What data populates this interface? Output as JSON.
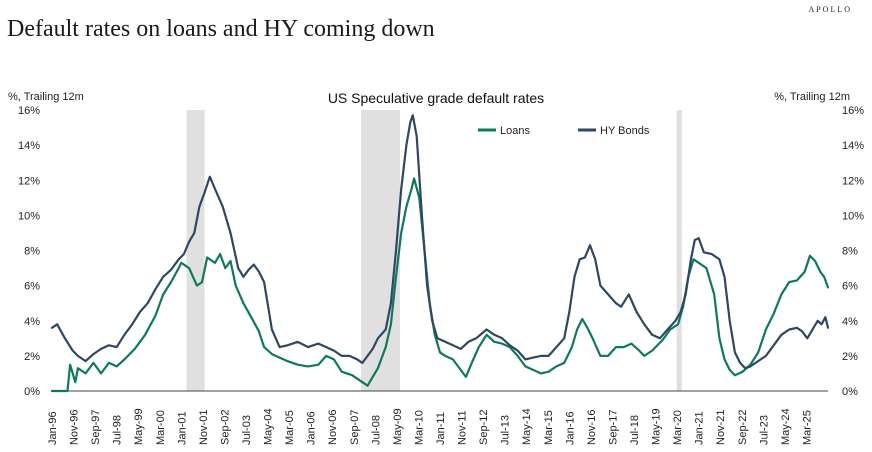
{
  "brand": "APOLLO",
  "headline": "Default rates on loans and HY coming down",
  "chart_data": {
    "type": "line",
    "title": "US Speculative grade default rates",
    "ylabel_left": "%, Trailing 12m",
    "ylabel_right": "%, Trailing 12m",
    "ylim": [
      0,
      16
    ],
    "yticks": [
      0,
      2,
      4,
      6,
      8,
      10,
      12,
      14,
      16
    ],
    "ytick_labels": [
      "0%",
      "2%",
      "4%",
      "6%",
      "8%",
      "10%",
      "12%",
      "14%",
      "16%"
    ],
    "x_start": "1996-01",
    "x_end": "2025-12",
    "xtick_labels": [
      "Jan-96",
      "Nov-96",
      "Sep-97",
      "Jul-98",
      "May-99",
      "Mar-00",
      "Jan-01",
      "Nov-01",
      "Sep-02",
      "Jul-03",
      "May-04",
      "Mar-05",
      "Jan-06",
      "Nov-06",
      "Sep-07",
      "Jul-08",
      "May-09",
      "Mar-10",
      "Jan-11",
      "Nov-11",
      "Sep-12",
      "Jul-13",
      "May-14",
      "Mar-15",
      "Jan-16",
      "Nov-16",
      "Sep-17",
      "Jul-18",
      "May-19",
      "Mar-20",
      "Jan-21",
      "Nov-21",
      "Sep-22",
      "Jul-23",
      "May-24",
      "Mar-25"
    ],
    "recessions": [
      {
        "start": 2001.2,
        "end": 2001.9
      },
      {
        "start": 2007.95,
        "end": 2009.45
      },
      {
        "start": 2020.15,
        "end": 2020.35
      }
    ],
    "legend": [
      "Loans",
      "HY Bonds"
    ],
    "colors": {
      "loans": "#0e7a5a",
      "hy": "#2f4763",
      "recession": "#e0e0e0",
      "axis": "#444444"
    },
    "series": [
      {
        "name": "Loans",
        "points": [
          [
            1996.0,
            0
          ],
          [
            1996.6,
            0
          ],
          [
            1996.7,
            1.5
          ],
          [
            1996.9,
            0.5
          ],
          [
            1997.0,
            1.3
          ],
          [
            1997.3,
            1.0
          ],
          [
            1997.6,
            1.6
          ],
          [
            1997.9,
            1.0
          ],
          [
            1998.2,
            1.6
          ],
          [
            1998.5,
            1.4
          ],
          [
            1998.8,
            1.8
          ],
          [
            1999.2,
            2.4
          ],
          [
            1999.6,
            3.2
          ],
          [
            2000.0,
            4.3
          ],
          [
            2000.3,
            5.5
          ],
          [
            2000.6,
            6.2
          ],
          [
            2000.9,
            7.0
          ],
          [
            2001.0,
            7.3
          ],
          [
            2001.3,
            7.0
          ],
          [
            2001.6,
            6.0
          ],
          [
            2001.8,
            6.2
          ],
          [
            2002.0,
            7.6
          ],
          [
            2002.3,
            7.3
          ],
          [
            2002.5,
            7.8
          ],
          [
            2002.7,
            7.0
          ],
          [
            2002.9,
            7.4
          ],
          [
            2003.1,
            6.0
          ],
          [
            2003.4,
            5.0
          ],
          [
            2003.7,
            4.2
          ],
          [
            2004.0,
            3.4
          ],
          [
            2004.2,
            2.5
          ],
          [
            2004.5,
            2.1
          ],
          [
            2004.8,
            1.9
          ],
          [
            2005.1,
            1.7
          ],
          [
            2005.5,
            1.5
          ],
          [
            2005.9,
            1.4
          ],
          [
            2006.3,
            1.5
          ],
          [
            2006.6,
            2.0
          ],
          [
            2006.9,
            1.8
          ],
          [
            2007.2,
            1.1
          ],
          [
            2007.6,
            0.9
          ],
          [
            2008.0,
            0.5
          ],
          [
            2008.2,
            0.3
          ],
          [
            2008.4,
            0.8
          ],
          [
            2008.6,
            1.3
          ],
          [
            2008.9,
            2.5
          ],
          [
            2009.1,
            3.8
          ],
          [
            2009.3,
            6.5
          ],
          [
            2009.5,
            9.0
          ],
          [
            2009.7,
            10.5
          ],
          [
            2009.9,
            11.5
          ],
          [
            2010.0,
            12.1
          ],
          [
            2010.2,
            11.0
          ],
          [
            2010.4,
            8.0
          ],
          [
            2010.6,
            5.0
          ],
          [
            2010.8,
            3.2
          ],
          [
            2011.0,
            2.2
          ],
          [
            2011.2,
            2.0
          ],
          [
            2011.5,
            1.8
          ],
          [
            2011.8,
            1.2
          ],
          [
            2012.0,
            0.8
          ],
          [
            2012.2,
            1.5
          ],
          [
            2012.5,
            2.5
          ],
          [
            2012.8,
            3.2
          ],
          [
            2013.1,
            2.8
          ],
          [
            2013.4,
            2.7
          ],
          [
            2013.7,
            2.5
          ],
          [
            2014.0,
            2.0
          ],
          [
            2014.3,
            1.4
          ],
          [
            2014.6,
            1.2
          ],
          [
            2014.9,
            1.0
          ],
          [
            2015.2,
            1.1
          ],
          [
            2015.5,
            1.4
          ],
          [
            2015.8,
            1.6
          ],
          [
            2016.1,
            2.5
          ],
          [
            2016.3,
            3.5
          ],
          [
            2016.5,
            4.1
          ],
          [
            2016.7,
            3.6
          ],
          [
            2016.9,
            3.0
          ],
          [
            2017.2,
            2.0
          ],
          [
            2017.5,
            2.0
          ],
          [
            2017.8,
            2.5
          ],
          [
            2018.1,
            2.5
          ],
          [
            2018.4,
            2.7
          ],
          [
            2018.7,
            2.3
          ],
          [
            2018.9,
            2.0
          ],
          [
            2019.2,
            2.3
          ],
          [
            2019.6,
            2.9
          ],
          [
            2019.9,
            3.5
          ],
          [
            2020.2,
            3.8
          ],
          [
            2020.4,
            4.8
          ],
          [
            2020.6,
            6.5
          ],
          [
            2020.8,
            7.5
          ],
          [
            2021.0,
            7.3
          ],
          [
            2021.3,
            7.0
          ],
          [
            2021.6,
            5.5
          ],
          [
            2021.8,
            3.0
          ],
          [
            2022.0,
            1.8
          ],
          [
            2022.2,
            1.2
          ],
          [
            2022.4,
            0.9
          ],
          [
            2022.7,
            1.1
          ],
          [
            2023.0,
            1.5
          ],
          [
            2023.3,
            2.2
          ],
          [
            2023.6,
            3.5
          ],
          [
            2023.9,
            4.4
          ],
          [
            2024.2,
            5.5
          ],
          [
            2024.5,
            6.2
          ],
          [
            2024.8,
            6.3
          ],
          [
            2025.1,
            6.8
          ],
          [
            2025.3,
            7.7
          ],
          [
            2025.5,
            7.4
          ],
          [
            2025.7,
            6.8
          ],
          [
            2025.85,
            6.5
          ],
          [
            2026.0,
            5.9
          ]
        ]
      },
      {
        "name": "HY Bonds",
        "points": [
          [
            1996.0,
            3.6
          ],
          [
            1996.2,
            3.8
          ],
          [
            1996.5,
            3.0
          ],
          [
            1996.8,
            2.3
          ],
          [
            1997.0,
            2.0
          ],
          [
            1997.3,
            1.7
          ],
          [
            1997.6,
            2.1
          ],
          [
            1997.9,
            2.4
          ],
          [
            1998.2,
            2.6
          ],
          [
            1998.5,
            2.5
          ],
          [
            1998.8,
            3.2
          ],
          [
            1999.1,
            3.8
          ],
          [
            1999.4,
            4.5
          ],
          [
            1999.7,
            5.0
          ],
          [
            2000.0,
            5.8
          ],
          [
            2000.3,
            6.5
          ],
          [
            2000.6,
            6.9
          ],
          [
            2000.9,
            7.5
          ],
          [
            2001.1,
            7.8
          ],
          [
            2001.3,
            8.5
          ],
          [
            2001.5,
            9.0
          ],
          [
            2001.7,
            10.5
          ],
          [
            2001.9,
            11.3
          ],
          [
            2002.1,
            12.2
          ],
          [
            2002.3,
            11.5
          ],
          [
            2002.6,
            10.5
          ],
          [
            2002.9,
            9.0
          ],
          [
            2003.2,
            7.0
          ],
          [
            2003.4,
            6.5
          ],
          [
            2003.6,
            6.9
          ],
          [
            2003.8,
            7.2
          ],
          [
            2004.0,
            6.8
          ],
          [
            2004.2,
            6.2
          ],
          [
            2004.5,
            3.5
          ],
          [
            2004.8,
            2.5
          ],
          [
            2005.1,
            2.6
          ],
          [
            2005.5,
            2.8
          ],
          [
            2005.9,
            2.5
          ],
          [
            2006.3,
            2.7
          ],
          [
            2006.6,
            2.5
          ],
          [
            2006.9,
            2.3
          ],
          [
            2007.2,
            2.0
          ],
          [
            2007.5,
            2.0
          ],
          [
            2007.8,
            1.8
          ],
          [
            2008.0,
            1.6
          ],
          [
            2008.2,
            2.0
          ],
          [
            2008.4,
            2.4
          ],
          [
            2008.6,
            3.0
          ],
          [
            2008.9,
            3.5
          ],
          [
            2009.1,
            5.0
          ],
          [
            2009.3,
            8.0
          ],
          [
            2009.5,
            11.5
          ],
          [
            2009.7,
            14.0
          ],
          [
            2009.85,
            15.3
          ],
          [
            2009.95,
            15.7
          ],
          [
            2010.1,
            14.5
          ],
          [
            2010.3,
            10.0
          ],
          [
            2010.5,
            6.0
          ],
          [
            2010.7,
            4.0
          ],
          [
            2010.9,
            3.0
          ],
          [
            2011.2,
            2.8
          ],
          [
            2011.5,
            2.6
          ],
          [
            2011.8,
            2.4
          ],
          [
            2012.1,
            2.8
          ],
          [
            2012.4,
            3.0
          ],
          [
            2012.8,
            3.5
          ],
          [
            2013.1,
            3.2
          ],
          [
            2013.4,
            3.0
          ],
          [
            2013.7,
            2.6
          ],
          [
            2014.0,
            2.3
          ],
          [
            2014.3,
            1.8
          ],
          [
            2014.6,
            1.9
          ],
          [
            2014.9,
            2.0
          ],
          [
            2015.2,
            2.0
          ],
          [
            2015.5,
            2.5
          ],
          [
            2015.8,
            3.0
          ],
          [
            2016.0,
            4.5
          ],
          [
            2016.2,
            6.5
          ],
          [
            2016.4,
            7.5
          ],
          [
            2016.6,
            7.6
          ],
          [
            2016.8,
            8.3
          ],
          [
            2017.0,
            7.5
          ],
          [
            2017.2,
            6.0
          ],
          [
            2017.5,
            5.5
          ],
          [
            2017.8,
            5.0
          ],
          [
            2018.0,
            4.8
          ],
          [
            2018.3,
            5.5
          ],
          [
            2018.6,
            4.5
          ],
          [
            2018.9,
            3.8
          ],
          [
            2019.2,
            3.2
          ],
          [
            2019.5,
            3.0
          ],
          [
            2019.8,
            3.5
          ],
          [
            2020.1,
            4.0
          ],
          [
            2020.3,
            4.5
          ],
          [
            2020.5,
            5.5
          ],
          [
            2020.7,
            7.5
          ],
          [
            2020.85,
            8.6
          ],
          [
            2021.0,
            8.7
          ],
          [
            2021.2,
            7.9
          ],
          [
            2021.5,
            7.8
          ],
          [
            2021.8,
            7.5
          ],
          [
            2022.0,
            6.5
          ],
          [
            2022.2,
            4.0
          ],
          [
            2022.4,
            2.2
          ],
          [
            2022.6,
            1.6
          ],
          [
            2022.8,
            1.3
          ],
          [
            2023.0,
            1.4
          ],
          [
            2023.3,
            1.7
          ],
          [
            2023.6,
            2.0
          ],
          [
            2023.9,
            2.6
          ],
          [
            2024.2,
            3.2
          ],
          [
            2024.5,
            3.5
          ],
          [
            2024.8,
            3.6
          ],
          [
            2025.0,
            3.4
          ],
          [
            2025.2,
            3.0
          ],
          [
            2025.4,
            3.5
          ],
          [
            2025.6,
            4.0
          ],
          [
            2025.75,
            3.8
          ],
          [
            2025.9,
            4.2
          ],
          [
            2026.0,
            3.6
          ]
        ]
      }
    ]
  }
}
